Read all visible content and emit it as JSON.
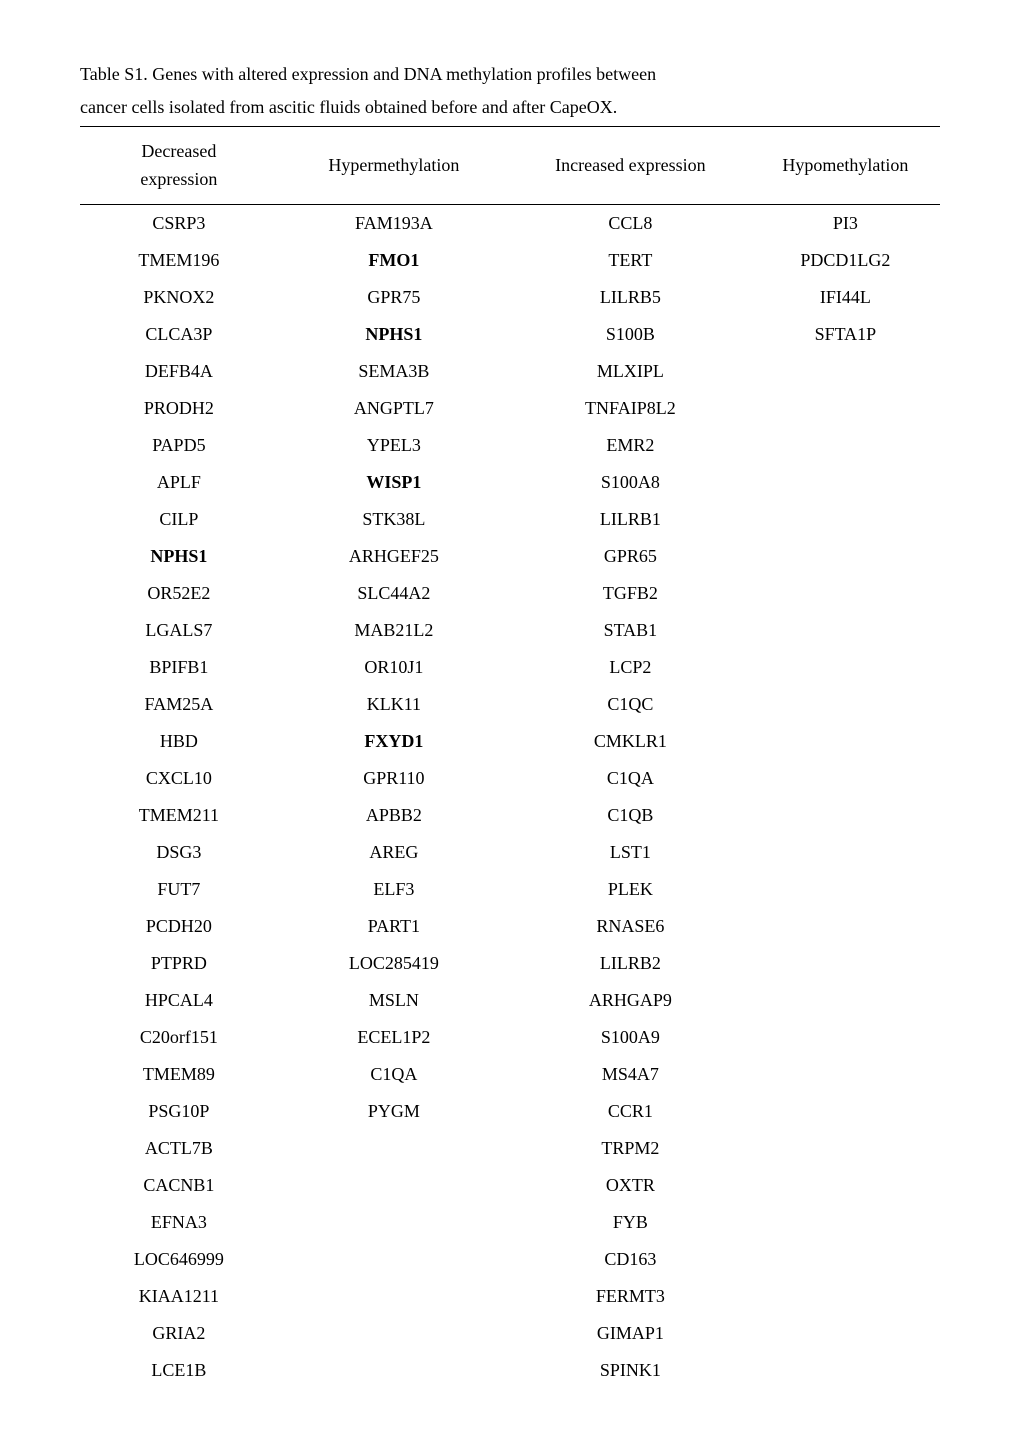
{
  "caption_line1": "Table S1. Genes with altered expression and DNA methylation profiles between",
  "caption_line2": "cancer cells isolated from ascitic fluids obtained before and after CapeOX.",
  "headers": {
    "col1_line1": "Decreased",
    "col1_line2": "expression",
    "col2": "Hypermethylation",
    "col3": "Increased expression",
    "col4": "Hypomethylation"
  },
  "rows": [
    {
      "c1": "CSRP3",
      "c1_bold": false,
      "c2": "FAM193A",
      "c2_bold": false,
      "c3": "CCL8",
      "c4": "PI3"
    },
    {
      "c1": "TMEM196",
      "c1_bold": false,
      "c2": "FMO1",
      "c2_bold": true,
      "c3": "TERT",
      "c4": "PDCD1LG2"
    },
    {
      "c1": "PKNOX2",
      "c1_bold": false,
      "c2": "GPR75",
      "c2_bold": false,
      "c3": "LILRB5",
      "c4": "IFI44L"
    },
    {
      "c1": "CLCA3P",
      "c1_bold": false,
      "c2": "NPHS1",
      "c2_bold": true,
      "c3": "S100B",
      "c4": "SFTA1P"
    },
    {
      "c1": "DEFB4A",
      "c1_bold": false,
      "c2": "SEMA3B",
      "c2_bold": false,
      "c3": "MLXIPL",
      "c4": ""
    },
    {
      "c1": "PRODH2",
      "c1_bold": false,
      "c2": "ANGPTL7",
      "c2_bold": false,
      "c3": "TNFAIP8L2",
      "c4": ""
    },
    {
      "c1": "PAPD5",
      "c1_bold": false,
      "c2": "YPEL3",
      "c2_bold": false,
      "c3": "EMR2",
      "c4": ""
    },
    {
      "c1": "APLF",
      "c1_bold": false,
      "c2": "WISP1",
      "c2_bold": true,
      "c3": "S100A8",
      "c4": ""
    },
    {
      "c1": "CILP",
      "c1_bold": false,
      "c2": "STK38L",
      "c2_bold": false,
      "c3": "LILRB1",
      "c4": ""
    },
    {
      "c1": "NPHS1",
      "c1_bold": true,
      "c2": "ARHGEF25",
      "c2_bold": false,
      "c3": "GPR65",
      "c4": ""
    },
    {
      "c1": "OR52E2",
      "c1_bold": false,
      "c2": "SLC44A2",
      "c2_bold": false,
      "c3": "TGFB2",
      "c4": ""
    },
    {
      "c1": "LGALS7",
      "c1_bold": false,
      "c2": "MAB21L2",
      "c2_bold": false,
      "c3": "STAB1",
      "c4": ""
    },
    {
      "c1": "BPIFB1",
      "c1_bold": false,
      "c2": "OR10J1",
      "c2_bold": false,
      "c3": "LCP2",
      "c4": ""
    },
    {
      "c1": "FAM25A",
      "c1_bold": false,
      "c2": "KLK11",
      "c2_bold": false,
      "c3": "C1QC",
      "c4": ""
    },
    {
      "c1": "HBD",
      "c1_bold": false,
      "c2": "FXYD1",
      "c2_bold": true,
      "c3": "CMKLR1",
      "c4": ""
    },
    {
      "c1": "CXCL10",
      "c1_bold": false,
      "c2": "GPR110",
      "c2_bold": false,
      "c3": "C1QA",
      "c4": ""
    },
    {
      "c1": "TMEM211",
      "c1_bold": false,
      "c2": "APBB2",
      "c2_bold": false,
      "c3": "C1QB",
      "c4": ""
    },
    {
      "c1": "DSG3",
      "c1_bold": false,
      "c2": "AREG",
      "c2_bold": false,
      "c3": "LST1",
      "c4": ""
    },
    {
      "c1": "FUT7",
      "c1_bold": false,
      "c2": "ELF3",
      "c2_bold": false,
      "c3": "PLEK",
      "c4": ""
    },
    {
      "c1": "PCDH20",
      "c1_bold": false,
      "c2": "PART1",
      "c2_bold": false,
      "c3": "RNASE6",
      "c4": ""
    },
    {
      "c1": "PTPRD",
      "c1_bold": false,
      "c2": "LOC285419",
      "c2_bold": false,
      "c3": "LILRB2",
      "c4": ""
    },
    {
      "c1": "HPCAL4",
      "c1_bold": false,
      "c2": "MSLN",
      "c2_bold": false,
      "c3": "ARHGAP9",
      "c4": ""
    },
    {
      "c1": "C20orf151",
      "c1_bold": false,
      "c2": "ECEL1P2",
      "c2_bold": false,
      "c3": "S100A9",
      "c4": ""
    },
    {
      "c1": "TMEM89",
      "c1_bold": false,
      "c2": "C1QA",
      "c2_bold": false,
      "c3": "MS4A7",
      "c4": ""
    },
    {
      "c1": "PSG10P",
      "c1_bold": false,
      "c2": "PYGM",
      "c2_bold": false,
      "c3": "CCR1",
      "c4": ""
    },
    {
      "c1": "ACTL7B",
      "c1_bold": false,
      "c2": "",
      "c2_bold": false,
      "c3": "TRPM2",
      "c4": ""
    },
    {
      "c1": "CACNB1",
      "c1_bold": false,
      "c2": "",
      "c2_bold": false,
      "c3": "OXTR",
      "c4": ""
    },
    {
      "c1": "EFNA3",
      "c1_bold": false,
      "c2": "",
      "c2_bold": false,
      "c3": "FYB",
      "c4": ""
    },
    {
      "c1": "LOC646999",
      "c1_bold": false,
      "c2": "",
      "c2_bold": false,
      "c3": "CD163",
      "c4": ""
    },
    {
      "c1": "KIAA1211",
      "c1_bold": false,
      "c2": "",
      "c2_bold": false,
      "c3": "FERMT3",
      "c4": ""
    },
    {
      "c1": "GRIA2",
      "c1_bold": false,
      "c2": "",
      "c2_bold": false,
      "c3": "GIMAP1",
      "c4": ""
    },
    {
      "c1": "LCE1B",
      "c1_bold": false,
      "c2": "",
      "c2_bold": false,
      "c3": "SPINK1",
      "c4": ""
    }
  ]
}
